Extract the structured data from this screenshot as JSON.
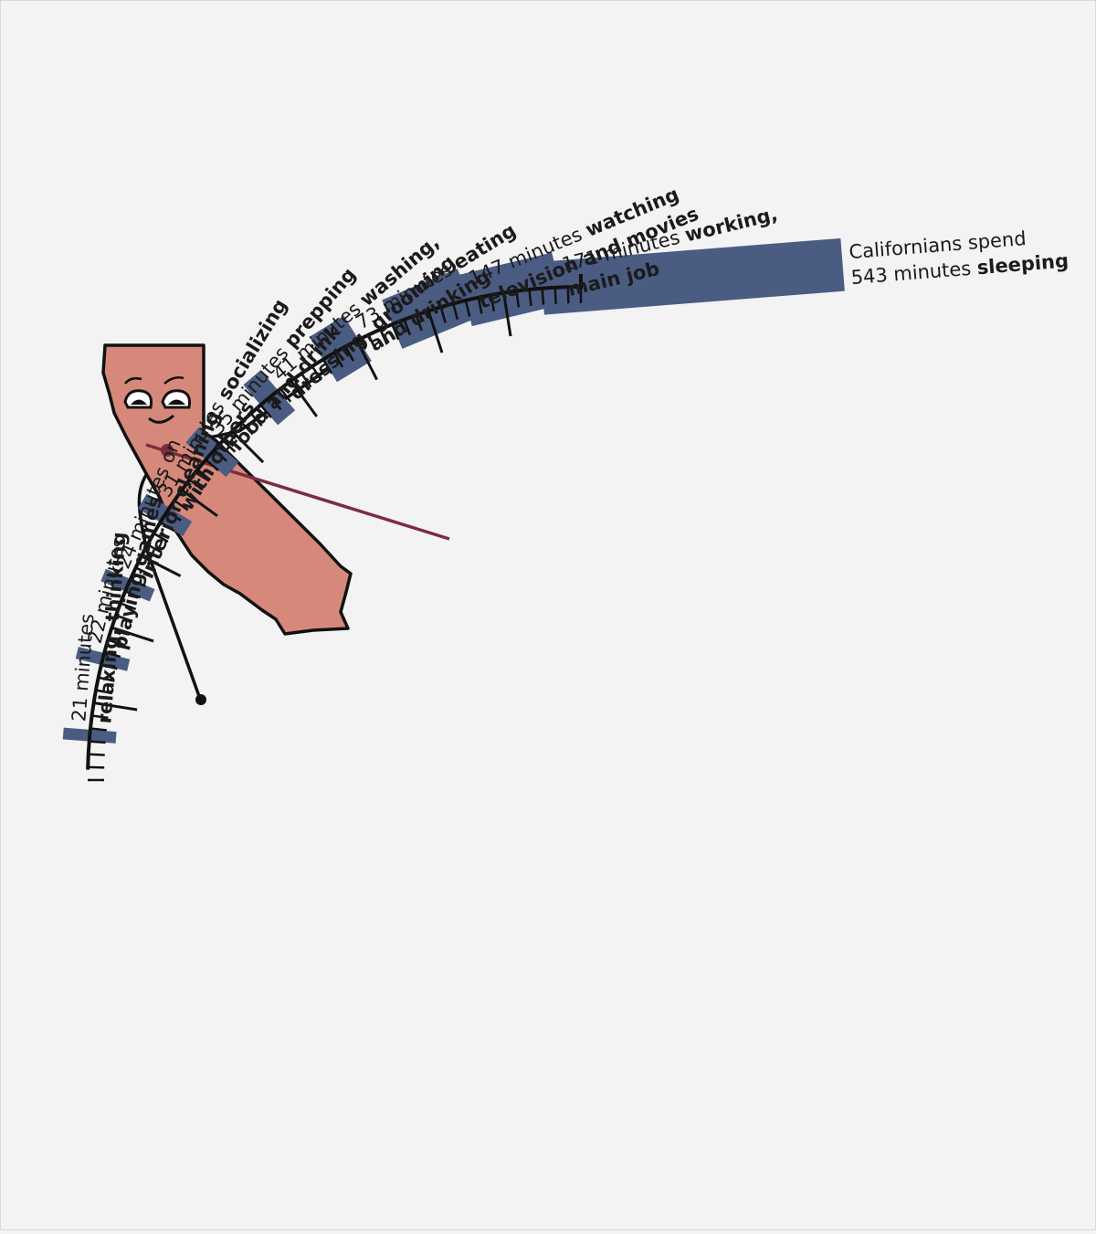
{
  "chart_data": {
    "type": "bar",
    "layout": "radial",
    "categories": [
      "sleeping",
      "working, main job",
      "watching television and movies",
      "eating and drinking",
      "washing, dressing, grooming",
      "prepping food and drink",
      "socializing with others",
      "interior cleaning",
      "playing games",
      "relaxing, thinking"
    ],
    "values": [
      543,
      171,
      147,
      73,
      41,
      35,
      31,
      24,
      22,
      21
    ],
    "unit": "minutes",
    "bar_color": "#4a5c82",
    "annotations": [
      {
        "lines": [
          [
            {
              "t": "Californians spend",
              "b": false
            }
          ],
          [
            {
              "t": "543 minutes ",
              "b": false
            },
            {
              "t": "sleeping",
              "b": true
            }
          ]
        ]
      },
      {
        "lines": [
          [
            {
              "t": "171 minutes ",
              "b": false
            },
            {
              "t": "working,",
              "b": true
            }
          ],
          [
            {
              "t": "main job",
              "b": true
            }
          ]
        ]
      },
      {
        "lines": [
          [
            {
              "t": "147 minutes ",
              "b": false
            },
            {
              "t": "watching",
              "b": true
            }
          ],
          [
            {
              "t": "television and movies",
              "b": true
            }
          ]
        ]
      },
      {
        "lines": [
          [
            {
              "t": "73 minutes ",
              "b": false
            },
            {
              "t": "eating",
              "b": true
            }
          ],
          [
            {
              "t": "and drinking",
              "b": true
            }
          ]
        ]
      },
      {
        "lines": [
          [
            {
              "t": "41 minutes ",
              "b": false
            },
            {
              "t": "washing,",
              "b": true
            }
          ],
          [
            {
              "t": "dressing, grooming",
              "b": true
            }
          ]
        ]
      },
      {
        "lines": [
          [
            {
              "t": "35 minutes ",
              "b": false
            },
            {
              "t": "prepping",
              "b": true
            }
          ],
          [
            {
              "t": "food and drink",
              "b": true
            }
          ]
        ]
      },
      {
        "lines": [
          [
            {
              "t": "31 minutes ",
              "b": false
            },
            {
              "t": "socializing",
              "b": true
            }
          ],
          [
            {
              "t": "with others",
              "b": true
            }
          ]
        ]
      },
      {
        "lines": [
          [
            {
              "t": "24 minutes on",
              "b": false
            }
          ],
          [
            {
              "t": "interior cleaning",
              "b": true
            }
          ]
        ]
      },
      {
        "lines": [
          [
            {
              "t": "22 minutes",
              "b": false
            }
          ],
          [
            {
              "t": "playing games",
              "b": true
            }
          ]
        ]
      },
      {
        "lines": [
          [
            {
              "t": "21 minutes",
              "b": false
            }
          ],
          [
            {
              "t": "relaxing, thinking",
              "b": true
            }
          ]
        ]
      }
    ]
  },
  "mascot": {
    "state_icon": "california-state-icon",
    "skin_color": "#d6897b",
    "hand_color": "#7b2d3f"
  },
  "colors": {
    "background": "#f3f3f4",
    "axis": "#111111"
  }
}
